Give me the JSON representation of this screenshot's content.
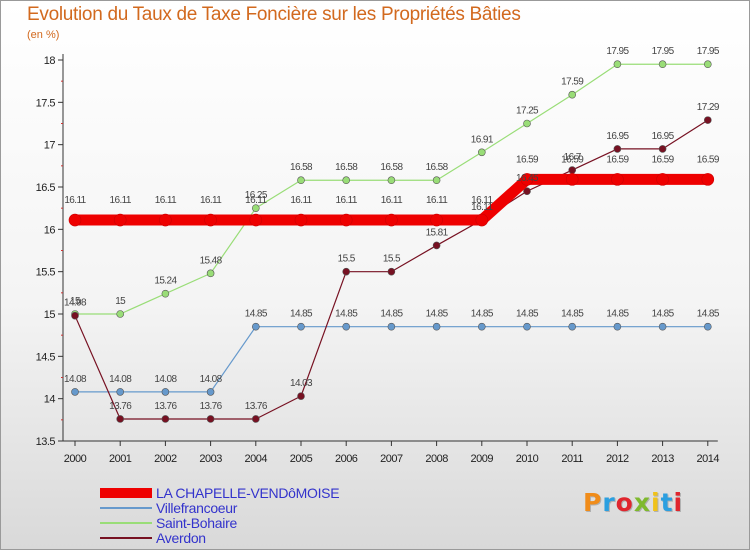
{
  "title": "Evolution du Taux de Taxe Foncière sur les Propriétés Bâties",
  "unit": "(en %)",
  "logo": {
    "text": "Proxiti",
    "letter_colors": [
      "#f08c1a",
      "#2b9fe0",
      "#e0262e",
      "#7fb92e",
      "#f0c21a",
      "#2b9fe0",
      "#e0262e"
    ]
  },
  "chart_data": {
    "type": "line",
    "title": "Evolution du Taux de Taxe Foncière sur les Propriétés Bâties",
    "ylabel": "(en %)",
    "xlabel": "",
    "x": [
      "2000",
      "2001",
      "2002",
      "2003",
      "2004",
      "2005",
      "2006",
      "2007",
      "2008",
      "2009",
      "2010",
      "2011",
      "2012",
      "2013",
      "2014"
    ],
    "ylim": [
      13.5,
      18
    ],
    "yticks": [
      "13.5",
      "14",
      "14.5",
      "15",
      "15.5",
      "16",
      "16.5",
      "17",
      "17.5",
      "18"
    ],
    "grid": false,
    "legend_position": "bottom-left",
    "series": [
      {
        "name": "LA CHAPELLE-VENDôMOISE",
        "color": "#ee0000",
        "values": [
          16.11,
          16.11,
          16.11,
          16.11,
          16.11,
          16.11,
          16.11,
          16.11,
          16.11,
          16.11,
          16.59,
          16.59,
          16.59,
          16.59,
          16.59
        ],
        "labels": [
          "16.11",
          "16.11",
          "16.11",
          "16.11",
          "16.11",
          "16.11",
          "16.11",
          "16.11",
          "16.11",
          "16.11",
          "16.59",
          "16.59",
          "16.59",
          "16.59",
          "16.59"
        ]
      },
      {
        "name": "Villefrancoeur",
        "color": "#6699cc",
        "values": [
          14.08,
          14.08,
          14.08,
          14.08,
          14.85,
          14.85,
          14.85,
          14.85,
          14.85,
          14.85,
          14.85,
          14.85,
          14.85,
          14.85,
          14.85
        ],
        "labels": [
          "14.08",
          "14.08",
          "14.08",
          "14.08",
          "14.85",
          "14.85",
          "14.85",
          "14.85",
          "14.85",
          "14.85",
          "14.85",
          "14.85",
          "14.85",
          "14.85",
          "14.85"
        ]
      },
      {
        "name": "Saint-Bohaire",
        "color": "#99dd77",
        "values": [
          15,
          15,
          15.24,
          15.48,
          16.25,
          16.58,
          16.58,
          16.58,
          16.58,
          16.91,
          17.25,
          17.59,
          17.95,
          17.95,
          17.95
        ],
        "labels": [
          "15",
          "15",
          "15.24",
          "15.48",
          "16.25",
          "16.58",
          "16.58",
          "16.58",
          "16.58",
          "16.91",
          "17.25",
          "17.59",
          "17.95",
          "17.95",
          "17.95"
        ]
      },
      {
        "name": "Averdon",
        "color": "#771122",
        "values": [
          14.98,
          13.76,
          13.76,
          13.76,
          13.76,
          14.03,
          15.5,
          15.5,
          15.81,
          16.11,
          16.45,
          16.7,
          16.95,
          16.95,
          17.29
        ],
        "labels": [
          "14.98",
          "13.76",
          "13.76",
          "13.76",
          "13.76",
          "14.03",
          "15.5",
          "15.5",
          "15.81",
          "16.11",
          "16.45",
          "16.7",
          "16.95",
          "16.95",
          "17.29"
        ]
      }
    ]
  }
}
